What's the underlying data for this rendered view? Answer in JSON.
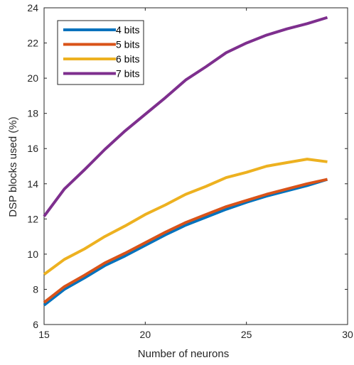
{
  "chart_data": {
    "type": "line",
    "title": "",
    "xlabel": "Number of neurons",
    "ylabel": "DSP blocks used (%)",
    "xlim": [
      15,
      30
    ],
    "ylim": [
      6,
      24
    ],
    "xticks": [
      15,
      20,
      25,
      30
    ],
    "yticks": [
      6,
      8,
      10,
      12,
      14,
      16,
      18,
      20,
      22,
      24
    ],
    "grid": false,
    "legend_position": "top-left",
    "x": [
      15,
      16,
      17,
      18,
      19,
      20,
      21,
      22,
      23,
      24,
      25,
      26,
      27,
      28,
      29
    ],
    "series": [
      {
        "name": "4 bits",
        "color": "#0072BD",
        "values": [
          7.1,
          8.0,
          8.65,
          9.35,
          9.9,
          10.5,
          11.1,
          11.65,
          12.1,
          12.55,
          12.95,
          13.3,
          13.6,
          13.9,
          14.25
        ]
      },
      {
        "name": "5 bits",
        "color": "#D95319",
        "values": [
          7.25,
          8.15,
          8.8,
          9.5,
          10.05,
          10.65,
          11.25,
          11.8,
          12.25,
          12.7,
          13.05,
          13.4,
          13.7,
          14.0,
          14.25
        ]
      },
      {
        "name": "6 bits",
        "color": "#EDB120",
        "values": [
          8.85,
          9.7,
          10.3,
          11.0,
          11.6,
          12.25,
          12.8,
          13.4,
          13.85,
          14.35,
          14.65,
          15.0,
          15.2,
          15.4,
          15.25
        ]
      },
      {
        "name": "7 bits",
        "color": "#7E2F8E",
        "values": [
          12.15,
          13.7,
          14.8,
          15.95,
          17.0,
          17.95,
          18.9,
          19.9,
          20.65,
          21.45,
          22.0,
          22.45,
          22.8,
          23.1,
          23.45
        ]
      }
    ]
  }
}
